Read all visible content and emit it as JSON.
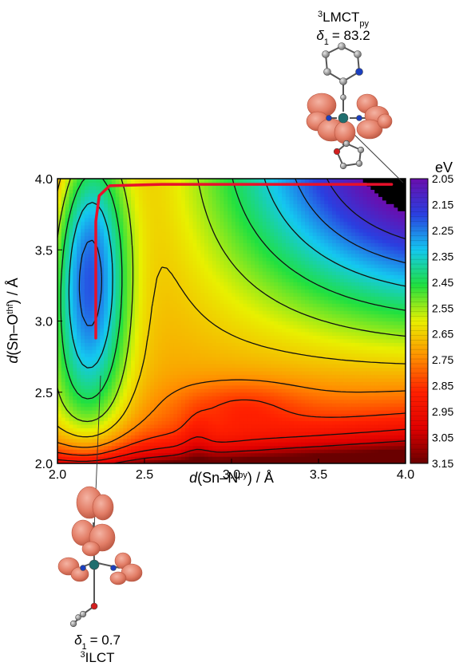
{
  "chart_data": {
    "type": "heatmap",
    "title": "",
    "x": {
      "label_prefix": "d",
      "label_open": "(Sn–N",
      "label_sup": "py",
      "label_close": ") / Å",
      "range": [
        2.0,
        4.0
      ],
      "ticks": [
        "2.0",
        "2.5",
        "3.0",
        "3.5",
        "4.0"
      ]
    },
    "y": {
      "label_prefix": "d",
      "label_open": "(Sn–O",
      "label_sup": "thf",
      "label_close": ") / Å",
      "range": [
        2.0,
        4.0
      ],
      "ticks": [
        "2.0",
        "2.5",
        "3.0",
        "3.5",
        "4.0"
      ]
    },
    "colorbar": {
      "unit": "eV",
      "range": [
        2.05,
        3.15
      ],
      "ticks": [
        "2.05",
        "2.15",
        "2.25",
        "2.35",
        "2.45",
        "2.55",
        "2.65",
        "2.75",
        "2.85",
        "2.95",
        "3.05",
        "3.15"
      ],
      "colormap": [
        "#6a0dad",
        "#2a3fe0",
        "#14c8f0",
        "#20e040",
        "#e8f000",
        "#ff9000",
        "#ff2000",
        "#e00000",
        "#6a0000"
      ]
    },
    "contour_levels_eV": [
      2.15,
      2.25,
      2.35,
      2.45,
      2.55,
      2.65,
      2.75,
      2.85,
      2.95,
      3.05
    ],
    "path": {
      "color": "#e8102a",
      "points": [
        [
          2.22,
          2.88
        ],
        [
          2.22,
          3.7
        ],
        [
          2.24,
          3.88
        ],
        [
          2.3,
          3.95
        ],
        [
          2.6,
          3.96
        ],
        [
          3.2,
          3.96
        ],
        [
          3.92,
          3.96
        ]
      ]
    },
    "annotations": [
      {
        "id": "top",
        "sup": "3",
        "state": "LMCT",
        "sub": "py",
        "delta_label": "δ",
        "delta_sub": "1",
        "value": "= 83.2",
        "anchor": [
          3.92,
          3.96
        ]
      },
      {
        "id": "bottom",
        "sup": "3",
        "state": "ILCT",
        "delta_label": "δ",
        "delta_sub": "1",
        "value": "= 0.7",
        "anchor": [
          2.22,
          2.88
        ]
      }
    ],
    "colors": {
      "atom_lobe": "#e0806a",
      "atom_carbon": "#8a8a8a",
      "atom_nitrogen": "#1b3fbf",
      "atom_oxygen": "#d21f1f",
      "atom_tin": "#1f6e6e",
      "background_dark": "#000000"
    }
  }
}
